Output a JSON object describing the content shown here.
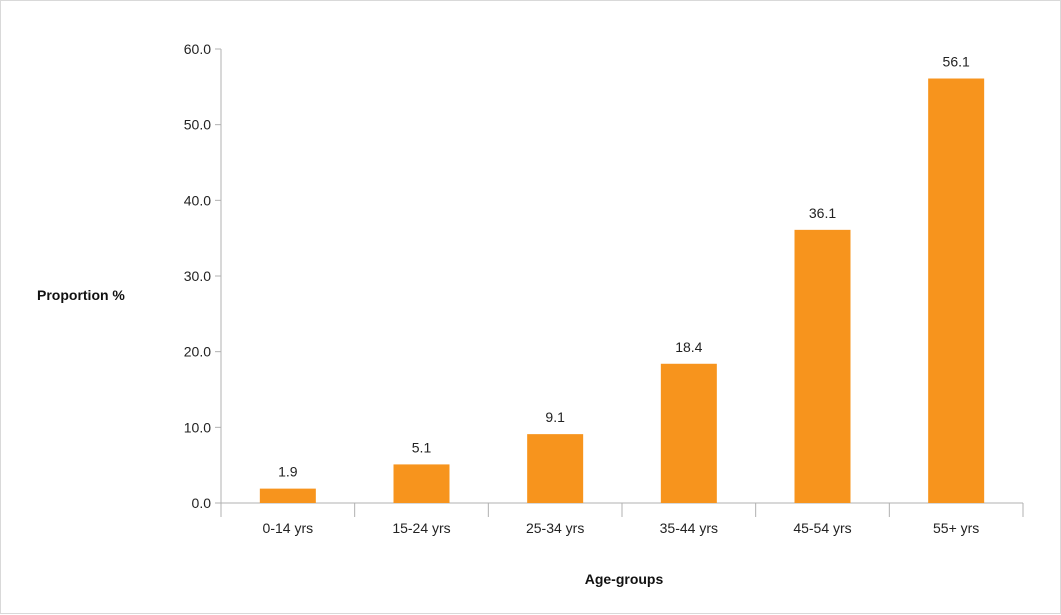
{
  "chart_data": {
    "type": "bar",
    "title": "",
    "xlabel": "Age-groups",
    "ylabel": "Proportion %",
    "categories": [
      "0-14 yrs",
      "15-24 yrs",
      "25-34 yrs",
      "35-44 yrs",
      "45-54 yrs",
      "55+ yrs"
    ],
    "values": [
      1.9,
      5.1,
      9.1,
      18.4,
      36.1,
      56.1
    ],
    "value_labels": [
      "1.9",
      "5.1",
      "9.1",
      "18.4",
      "36.1",
      "56.1"
    ],
    "yticks": [
      "0.0",
      "10.0",
      "20.0",
      "30.0",
      "40.0",
      "50.0",
      "60.0"
    ],
    "ylim": [
      0,
      60
    ],
    "grid": false,
    "legend": "none",
    "bar_color": "#f7941d",
    "axis_color": "#b0b0b0"
  }
}
